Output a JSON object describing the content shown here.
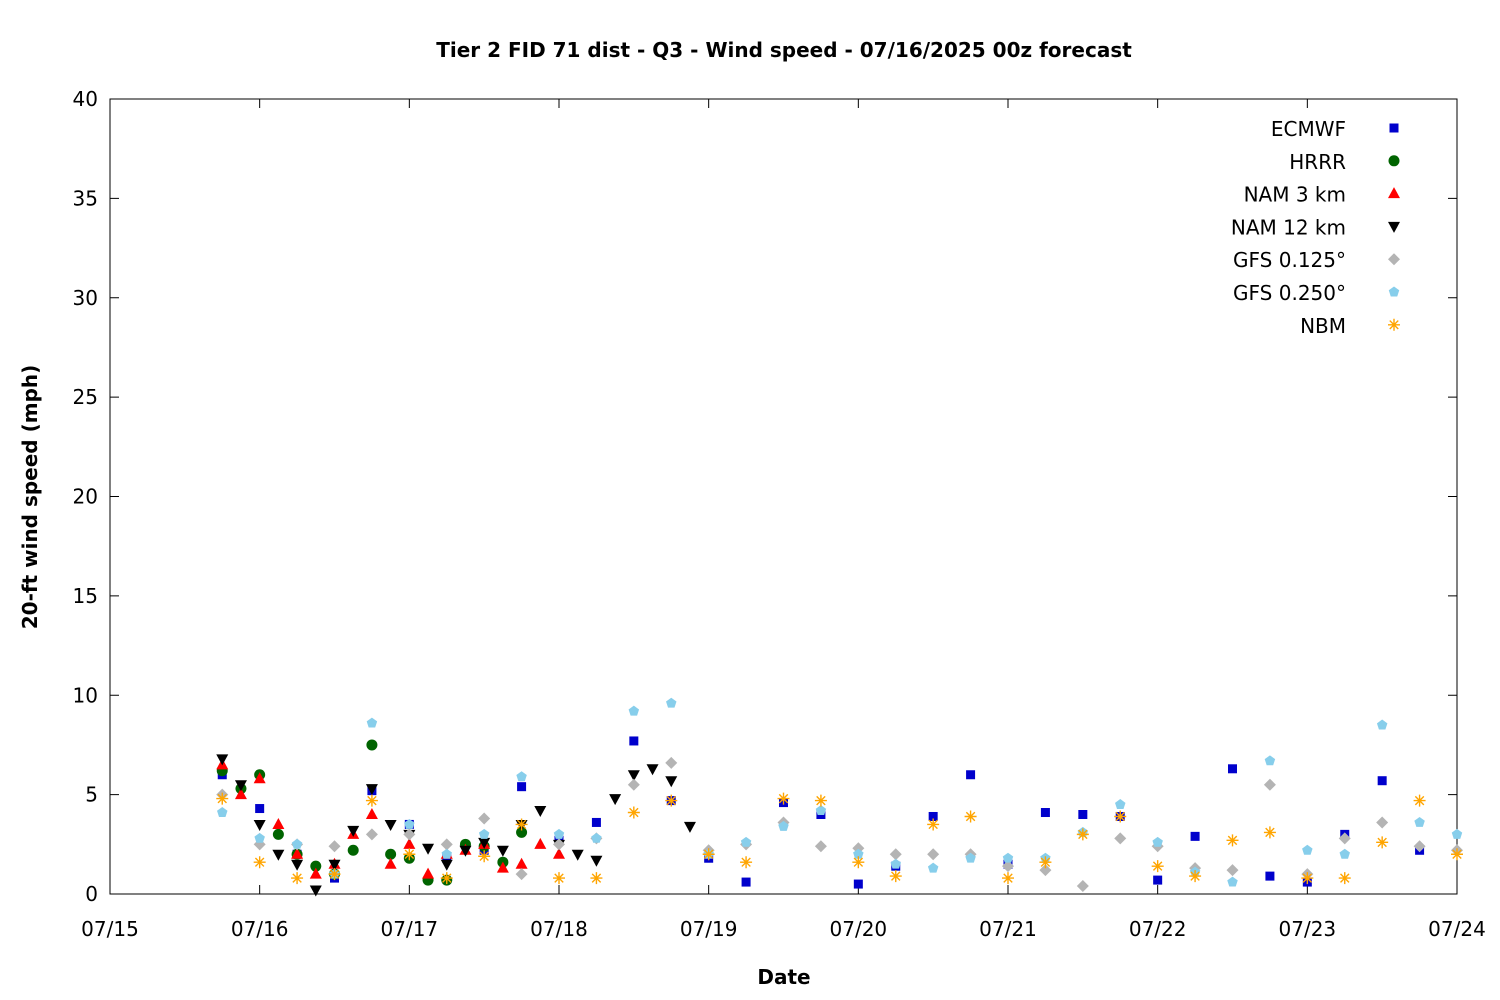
{
  "chart_data": {
    "type": "scatter",
    "title": "Tier 2 FID 71 dist - Q3 - Wind speed - 07/16/2025 00z forecast",
    "xlabel": "Date",
    "ylabel": "20-ft wind speed (mph)",
    "xlim": [
      "07/15",
      "07/24"
    ],
    "ylim": [
      0,
      40
    ],
    "x_ticks": [
      "07/15",
      "07/16",
      "07/17",
      "07/18",
      "07/19",
      "07/20",
      "07/21",
      "07/22",
      "07/23",
      "07/24"
    ],
    "y_ticks": [
      0,
      5,
      10,
      15,
      20,
      25,
      30,
      35,
      40
    ],
    "grid": false,
    "legend_position": "top-right",
    "series": [
      {
        "name": "ECMWF",
        "marker": "square",
        "color": "#0000cc",
        "x": [
          "07/15 18:00",
          "07/16 00:00",
          "07/16 06:00",
          "07/16 12:00",
          "07/16 18:00",
          "07/17 00:00",
          "07/17 06:00",
          "07/17 12:00",
          "07/17 18:00",
          "07/18 00:00",
          "07/18 06:00",
          "07/18 12:00",
          "07/18 18:00",
          "07/19 00:00",
          "07/19 06:00",
          "07/19 12:00",
          "07/19 18:00",
          "07/20 00:00",
          "07/20 06:00",
          "07/20 12:00",
          "07/20 18:00",
          "07/21 00:00",
          "07/21 06:00",
          "07/21 12:00",
          "07/21 18:00",
          "07/22 00:00",
          "07/22 06:00",
          "07/22 12:00",
          "07/22 18:00",
          "07/23 00:00",
          "07/23 06:00",
          "07/23 12:00",
          "07/23 18:00"
        ],
        "y": [
          6.0,
          4.3,
          2.0,
          0.8,
          5.2,
          3.5,
          1.8,
          2.2,
          5.4,
          2.7,
          3.6,
          7.7,
          4.7,
          1.8,
          0.6,
          4.6,
          4.0,
          0.5,
          1.4,
          3.9,
          6.0,
          1.5,
          4.1,
          4.0,
          3.9,
          0.7,
          2.9,
          6.3,
          0.9,
          0.6,
          3.0,
          5.7,
          2.2
        ]
      },
      {
        "name": "HRRR",
        "marker": "circle",
        "color": "#006400",
        "x": [
          "07/15 18:00",
          "07/15 21:00",
          "07/16 00:00",
          "07/16 03:00",
          "07/16 06:00",
          "07/16 09:00",
          "07/16 12:00",
          "07/16 15:00",
          "07/16 18:00",
          "07/16 21:00",
          "07/17 00:00",
          "07/17 03:00",
          "07/17 06:00",
          "07/17 09:00",
          "07/17 12:00",
          "07/17 15:00",
          "07/17 18:00"
        ],
        "y": [
          6.2,
          5.3,
          6.0,
          3.0,
          2.0,
          1.4,
          1.0,
          2.2,
          7.5,
          2.0,
          1.8,
          0.7,
          0.7,
          2.5,
          2.4,
          1.6,
          3.1
        ]
      },
      {
        "name": "NAM 3 km",
        "marker": "triangle-up",
        "color": "#ff0000",
        "x": [
          "07/15 18:00",
          "07/15 21:00",
          "07/16 00:00",
          "07/16 03:00",
          "07/16 06:00",
          "07/16 09:00",
          "07/16 12:00",
          "07/16 15:00",
          "07/16 18:00",
          "07/16 21:00",
          "07/17 00:00",
          "07/17 03:00",
          "07/17 06:00",
          "07/17 09:00",
          "07/17 12:00",
          "07/17 15:00",
          "07/17 18:00",
          "07/17 21:00",
          "07/18 00:00"
        ],
        "y": [
          6.5,
          5.0,
          5.8,
          3.5,
          2.0,
          1.0,
          1.5,
          3.0,
          4.0,
          1.5,
          2.5,
          1.0,
          2.0,
          2.2,
          2.5,
          1.3,
          1.5,
          2.5,
          2.0
        ]
      },
      {
        "name": "NAM 12 km",
        "marker": "triangle-down",
        "color": "#000000",
        "x": [
          "07/15 18:00",
          "07/15 21:00",
          "07/16 00:00",
          "07/16 03:00",
          "07/16 06:00",
          "07/16 09:00",
          "07/16 12:00",
          "07/16 15:00",
          "07/16 18:00",
          "07/16 21:00",
          "07/17 00:00",
          "07/17 03:00",
          "07/17 06:00",
          "07/17 09:00",
          "07/17 12:00",
          "07/17 15:00",
          "07/17 18:00",
          "07/17 21:00",
          "07/18 00:00",
          "07/18 03:00",
          "07/18 06:00",
          "07/18 09:00",
          "07/18 12:00",
          "07/18 15:00",
          "07/18 18:00",
          "07/18 21:00"
        ],
        "y": [
          6.8,
          5.5,
          3.5,
          2.0,
          1.5,
          0.2,
          1.5,
          3.2,
          5.3,
          3.5,
          3.0,
          2.3,
          1.5,
          2.2,
          2.6,
          2.2,
          3.5,
          4.2,
          2.5,
          2.0,
          1.7,
          4.8,
          6.0,
          6.3,
          5.7,
          3.4
        ]
      },
      {
        "name": "GFS 0.125°",
        "marker": "diamond",
        "color": "#b4b4b4",
        "x": [
          "07/15 18:00",
          "07/16 00:00",
          "07/16 06:00",
          "07/16 12:00",
          "07/16 18:00",
          "07/17 00:00",
          "07/17 06:00",
          "07/17 12:00",
          "07/17 18:00",
          "07/18 00:00",
          "07/18 06:00",
          "07/18 12:00",
          "07/18 18:00",
          "07/19 00:00",
          "07/19 06:00",
          "07/19 12:00",
          "07/19 18:00",
          "07/20 00:00",
          "07/20 06:00",
          "07/20 12:00",
          "07/20 18:00",
          "07/21 00:00",
          "07/21 06:00",
          "07/21 12:00",
          "07/21 18:00",
          "07/22 00:00",
          "07/22 06:00",
          "07/22 12:00",
          "07/22 18:00",
          "07/23 00:00",
          "07/23 06:00",
          "07/23 12:00",
          "07/23 18:00",
          "07/24 00:00"
        ],
        "y": [
          5.0,
          2.5,
          2.5,
          2.4,
          3.0,
          3.0,
          2.5,
          3.8,
          1.0,
          2.5,
          2.8,
          5.5,
          6.6,
          2.2,
          2.5,
          3.6,
          2.4,
          2.3,
          2.0,
          2.0,
          2.0,
          1.4,
          1.2,
          0.4,
          2.8,
          2.4,
          1.3,
          1.2,
          5.5,
          1.0,
          2.8,
          3.6,
          2.4,
          2.2
        ]
      },
      {
        "name": "GFS 0.250°",
        "marker": "pentagon",
        "color": "#87ceeb",
        "x": [
          "07/15 18:00",
          "07/16 00:00",
          "07/16 06:00",
          "07/16 12:00",
          "07/16 18:00",
          "07/17 00:00",
          "07/17 06:00",
          "07/17 12:00",
          "07/17 18:00",
          "07/18 00:00",
          "07/18 06:00",
          "07/18 12:00",
          "07/18 18:00",
          "07/19 00:00",
          "07/19 06:00",
          "07/19 12:00",
          "07/19 18:00",
          "07/20 00:00",
          "07/20 06:00",
          "07/20 12:00",
          "07/20 18:00",
          "07/21 00:00",
          "07/21 06:00",
          "07/21 12:00",
          "07/21 18:00",
          "07/22 00:00",
          "07/22 06:00",
          "07/22 12:00",
          "07/22 18:00",
          "07/23 00:00",
          "07/23 06:00",
          "07/23 12:00",
          "07/23 18:00",
          "07/24 00:00"
        ],
        "y": [
          4.1,
          2.8,
          2.5,
          1.0,
          8.6,
          3.5,
          2.0,
          3.0,
          5.9,
          3.0,
          2.8,
          9.2,
          9.6,
          2.0,
          2.6,
          3.4,
          4.2,
          2.0,
          1.5,
          1.3,
          1.8,
          1.8,
          1.8,
          3.1,
          4.5,
          2.6,
          1.1,
          0.6,
          6.7,
          2.2,
          2.0,
          8.5,
          3.6,
          3.0
        ]
      },
      {
        "name": "NBM",
        "marker": "star",
        "color": "#ffa500",
        "x": [
          "07/15 18:00",
          "07/16 00:00",
          "07/16 06:00",
          "07/16 12:00",
          "07/16 18:00",
          "07/17 00:00",
          "07/17 06:00",
          "07/17 12:00",
          "07/17 18:00",
          "07/18 00:00",
          "07/18 06:00",
          "07/18 12:00",
          "07/18 18:00",
          "07/19 00:00",
          "07/19 06:00",
          "07/19 12:00",
          "07/19 18:00",
          "07/20 00:00",
          "07/20 06:00",
          "07/20 12:00",
          "07/20 18:00",
          "07/21 00:00",
          "07/21 06:00",
          "07/21 12:00",
          "07/21 18:00",
          "07/22 00:00",
          "07/22 06:00",
          "07/22 12:00",
          "07/22 18:00",
          "07/23 00:00",
          "07/23 06:00",
          "07/23 12:00",
          "07/23 18:00",
          "07/24 00:00"
        ],
        "y": [
          4.8,
          1.6,
          0.8,
          1.0,
          4.7,
          2.0,
          0.8,
          1.9,
          3.5,
          0.8,
          0.8,
          4.1,
          4.7,
          2.0,
          1.6,
          4.8,
          4.7,
          1.6,
          0.9,
          3.5,
          3.9,
          0.8,
          1.6,
          3.0,
          3.9,
          1.4,
          0.9,
          2.7,
          3.1,
          0.8,
          0.8,
          2.6,
          4.7,
          2.0
        ]
      }
    ]
  }
}
